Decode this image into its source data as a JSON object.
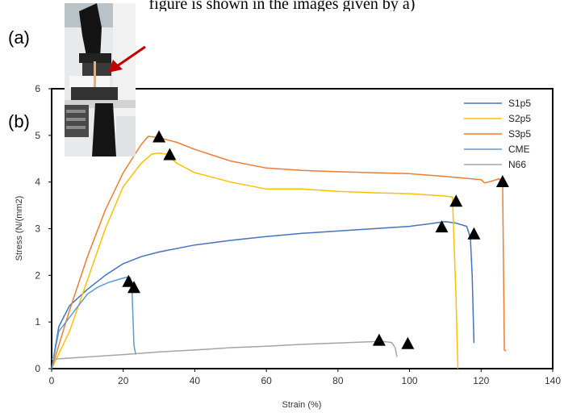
{
  "caption": "figure is shown in the images given by a)",
  "labels": {
    "a": "(a)",
    "b": "(b)"
  },
  "colors": {
    "S1p5": "#4472c4",
    "S2p5": "#ffc000",
    "S3p5": "#ed7d31",
    "CME": "#5b9bd5",
    "N66": "#a5a5a5",
    "arrow": "#c00000"
  },
  "chart_data": {
    "type": "line",
    "title": "",
    "xlabel": "Strain (%)",
    "ylabel": "Stress (N/(mm2)",
    "xlim": [
      0,
      140
    ],
    "ylim": [
      0,
      6
    ],
    "xticks": [
      "0",
      "20",
      "40",
      "60",
      "80",
      "100",
      "120",
      "140"
    ],
    "yticks": [
      "0",
      "1",
      "2",
      "3",
      "4",
      "5",
      "6"
    ],
    "grid": false,
    "legend": "top-right",
    "series": [
      {
        "name": "S1p5",
        "color": "#4472c4",
        "x": [
          0,
          2,
          5,
          10,
          15,
          20,
          25,
          30,
          40,
          50,
          60,
          70,
          80,
          90,
          100,
          105,
          110,
          113,
          116,
          117,
          117.5,
          118
        ],
        "y": [
          0,
          0.9,
          1.35,
          1.7,
          2.0,
          2.25,
          2.4,
          2.5,
          2.65,
          2.75,
          2.83,
          2.9,
          2.95,
          3.0,
          3.05,
          3.1,
          3.15,
          3.12,
          3.05,
          2.8,
          2.0,
          0.55
        ]
      },
      {
        "name": "S2p5",
        "color": "#ffc000",
        "x": [
          0,
          5,
          10,
          15,
          20,
          25,
          28,
          30,
          32,
          35,
          40,
          50,
          60,
          70,
          80,
          90,
          100,
          110,
          112,
          113,
          113.5
        ],
        "y": [
          0,
          0.8,
          1.9,
          3.0,
          3.9,
          4.4,
          4.6,
          4.62,
          4.6,
          4.4,
          4.2,
          4.0,
          3.85,
          3.85,
          3.8,
          3.77,
          3.75,
          3.7,
          3.68,
          1.5,
          0
        ]
      },
      {
        "name": "S3p5",
        "color": "#ed7d31",
        "x": [
          0,
          5,
          10,
          15,
          20,
          25,
          27,
          30,
          35,
          40,
          50,
          60,
          70,
          80,
          90,
          100,
          110,
          120,
          121,
          123,
          125,
          126,
          126.5,
          127
        ],
        "y": [
          0,
          1.25,
          2.4,
          3.4,
          4.2,
          4.8,
          4.98,
          4.95,
          4.85,
          4.7,
          4.45,
          4.3,
          4.25,
          4.22,
          4.2,
          4.18,
          4.12,
          4.05,
          3.98,
          4.02,
          4.07,
          4.0,
          0.4,
          0.38
        ]
      },
      {
        "name": "CME",
        "color": "#5b9bd5",
        "x": [
          0,
          2,
          5,
          8,
          10,
          13,
          16,
          19,
          21,
          22,
          22.5,
          23,
          23.5
        ],
        "y": [
          0,
          0.8,
          1.1,
          1.4,
          1.6,
          1.75,
          1.85,
          1.92,
          1.96,
          1.95,
          1.6,
          0.5,
          0.3
        ]
      },
      {
        "name": "N66",
        "color": "#a5a5a5",
        "x": [
          0,
          10,
          20,
          30,
          40,
          50,
          60,
          70,
          80,
          90,
          93,
          95,
          96,
          96.5
        ],
        "y": [
          0.2,
          0.25,
          0.3,
          0.36,
          0.4,
          0.45,
          0.48,
          0.52,
          0.55,
          0.58,
          0.58,
          0.56,
          0.45,
          0.25
        ]
      }
    ],
    "markers": {
      "shape": "triangle",
      "color": "#000000",
      "points": [
        {
          "series": "CME",
          "x": 21.5,
          "y": 1.88
        },
        {
          "series": "CME",
          "x": 23,
          "y": 1.75
        },
        {
          "series": "S3p5",
          "x": 30,
          "y": 4.98
        },
        {
          "series": "S2p5",
          "x": 33,
          "y": 4.6
        },
        {
          "series": "N66",
          "x": 91.5,
          "y": 0.62
        },
        {
          "series": "N66",
          "x": 99.5,
          "y": 0.55
        },
        {
          "series": "S1p5",
          "x": 109,
          "y": 3.05
        },
        {
          "series": "S2p5",
          "x": 113,
          "y": 3.6
        },
        {
          "series": "S1p5",
          "x": 118,
          "y": 2.9
        },
        {
          "series": "S3p5",
          "x": 126,
          "y": 4.02
        }
      ]
    }
  }
}
